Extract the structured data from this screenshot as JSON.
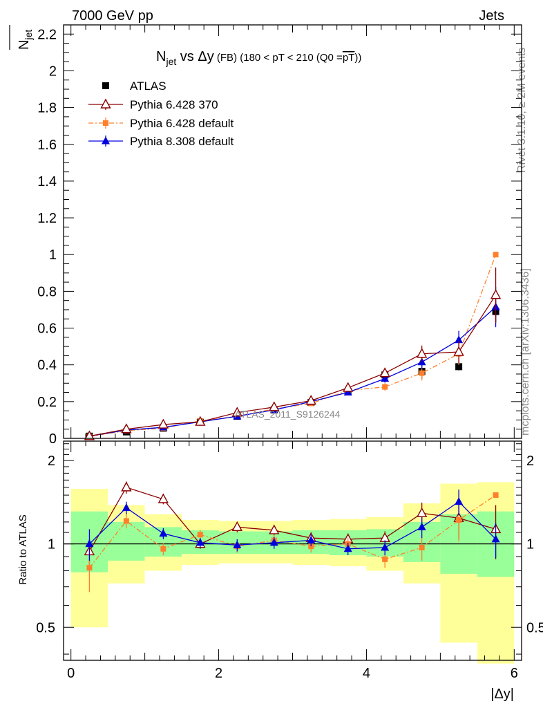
{
  "header": {
    "left": "7000 GeV pp",
    "right": "Jets"
  },
  "side_labels": {
    "rivet": "Rivet 3.1.10, ≥ 2M events",
    "mcplots": "mcplots.cern.ch [arXiv:1306.3436]"
  },
  "watermark": "ATLAS_2011_S9126244",
  "colors": {
    "atlas": "#000000",
    "p6_370": "#8b0000",
    "p6_default": "#ff7f2a",
    "p8": "#0000dd",
    "band_outer": "#ffff99",
    "band_inner": "#99ff99"
  },
  "chart_data": [
    {
      "type": "line",
      "title": {
        "main": "N",
        "sub": "jet",
        "vs": " vs ",
        "delta": "Δy",
        "fb": " (FB)",
        "cut": " (180 < pT < 210 (Q0 =",
        "q0": "pT",
        "close": "))"
      },
      "ylabel": {
        "main": "N",
        "sub": "jet"
      },
      "xlim": [
        -0.1,
        6.1
      ],
      "ylim": [
        0,
        2.25
      ],
      "yticks": [
        "0",
        "0.2",
        "0.4",
        "0.6",
        "0.8",
        "1",
        "1.2",
        "1.4",
        "1.6",
        "1.8",
        "2",
        "2.2"
      ],
      "ytick_values": [
        0,
        0.2,
        0.4,
        0.6,
        0.8,
        1.0,
        1.2,
        1.4,
        1.6,
        1.8,
        2.0,
        2.2
      ],
      "legend_position": "top-left",
      "x": [
        0.25,
        0.75,
        1.25,
        1.75,
        2.25,
        2.75,
        3.25,
        3.75,
        4.25,
        4.75,
        5.25,
        5.75
      ],
      "series": [
        {
          "name": "ATLAS",
          "key": "atlas",
          "marker": "square",
          "values": [
            0.012,
            0.035,
            0.055,
            0.088,
            0.12,
            0.155,
            0.195,
            0.255,
            0.345,
            0.365,
            0.39,
            0.69
          ],
          "errors": [
            0.004,
            0.005,
            0.006,
            0.008,
            0.01,
            0.012,
            0.014,
            0.018,
            0.03,
            0.04,
            0.02,
            0.06
          ]
        },
        {
          "name": "Pythia 6.428 370",
          "key": "p6_370",
          "marker": "open-triangle",
          "values": [
            0.012,
            0.05,
            0.075,
            0.09,
            0.14,
            0.17,
            0.205,
            0.275,
            0.355,
            0.46,
            0.47,
            0.78
          ],
          "errors": [
            0.002,
            0.004,
            0.005,
            0.005,
            0.006,
            0.008,
            0.01,
            0.014,
            0.025,
            0.045,
            0.06,
            0.15
          ]
        },
        {
          "name": "Pythia 6.428 default",
          "key": "p6_default",
          "marker": "filled-square",
          "values": [
            0.01,
            0.042,
            0.055,
            0.095,
            0.12,
            0.16,
            0.19,
            0.26,
            0.28,
            0.355,
            0.46,
            1.0
          ],
          "errors": [
            0.002,
            0.004,
            0.004,
            0.005,
            0.006,
            0.007,
            0.01,
            0.015,
            0.02,
            0.04,
            0.06,
            0.0
          ]
        },
        {
          "name": "Pythia 8.308 default",
          "key": "p8",
          "marker": "filled-triangle",
          "values": [
            0.012,
            0.045,
            0.06,
            0.09,
            0.12,
            0.155,
            0.2,
            0.25,
            0.325,
            0.415,
            0.535,
            0.715
          ],
          "errors": [
            0.002,
            0.004,
            0.004,
            0.005,
            0.006,
            0.008,
            0.01,
            0.013,
            0.022,
            0.035,
            0.05,
            0.11
          ]
        }
      ]
    },
    {
      "type": "line",
      "ylabel": "Ratio to ATLAS",
      "xlabel": "|Δy|",
      "xlim": [
        -0.1,
        6.1
      ],
      "ylim": [
        0.38,
        2.35
      ],
      "log_y": true,
      "xticks": [
        "0",
        "2",
        "4",
        "6"
      ],
      "xtick_values": [
        0,
        2,
        4,
        6
      ],
      "yticks": [
        "0.5",
        "1",
        "2"
      ],
      "ytick_values": [
        0.5,
        1,
        2
      ],
      "x": [
        0.25,
        0.75,
        1.25,
        1.75,
        2.25,
        2.75,
        3.25,
        3.75,
        4.25,
        4.75,
        5.25,
        5.75
      ],
      "bins": [
        [
          0,
          0.5
        ],
        [
          0.5,
          1
        ],
        [
          1,
          1.5
        ],
        [
          1.5,
          2
        ],
        [
          2,
          2.5
        ],
        [
          2.5,
          3
        ],
        [
          3,
          3.5
        ],
        [
          3.5,
          4
        ],
        [
          4,
          4.5
        ],
        [
          4.5,
          5
        ],
        [
          5,
          5.5
        ],
        [
          5.5,
          6
        ]
      ],
      "band_outer": [
        [
          0.5,
          1.58
        ],
        [
          0.72,
          1.38
        ],
        [
          0.8,
          1.28
        ],
        [
          0.84,
          1.22
        ],
        [
          0.85,
          1.21
        ],
        [
          0.85,
          1.21
        ],
        [
          0.84,
          1.22
        ],
        [
          0.83,
          1.23
        ],
        [
          0.8,
          1.25
        ],
        [
          0.72,
          1.4
        ],
        [
          0.44,
          1.65
        ],
        [
          0.37,
          1.67
        ]
      ],
      "band_inner": [
        [
          0.79,
          1.31
        ],
        [
          0.87,
          1.2
        ],
        [
          0.9,
          1.15
        ],
        [
          0.92,
          1.12
        ],
        [
          0.92,
          1.11
        ],
        [
          0.92,
          1.11
        ],
        [
          0.92,
          1.12
        ],
        [
          0.91,
          1.12
        ],
        [
          0.9,
          1.13
        ],
        [
          0.86,
          1.2
        ],
        [
          0.78,
          1.28
        ],
        [
          0.76,
          1.31
        ]
      ],
      "series": [
        {
          "key": "p6_370",
          "marker": "open-triangle",
          "values": [
            0.94,
            1.6,
            1.45,
            1.0,
            1.15,
            1.12,
            1.05,
            1.04,
            1.05,
            1.29,
            1.24,
            1.13
          ],
          "errors": [
            0.1,
            0.08,
            0.06,
            0.04,
            0.05,
            0.05,
            0.05,
            0.05,
            0.06,
            0.12,
            0.2,
            0.25
          ]
        },
        {
          "key": "p6_default",
          "marker": "filled-square",
          "values": [
            0.82,
            1.21,
            0.96,
            1.08,
            0.98,
            1.03,
            0.98,
            1.0,
            0.88,
            0.97,
            1.22,
            1.5
          ],
          "errors": [
            0.15,
            0.07,
            0.05,
            0.04,
            0.05,
            0.05,
            0.05,
            0.05,
            0.06,
            0.1,
            0.2,
            0.0
          ]
        },
        {
          "key": "p8",
          "marker": "filled-triangle",
          "values": [
            1.0,
            1.35,
            1.09,
            1.01,
            0.99,
            1.01,
            1.03,
            0.96,
            0.97,
            1.15,
            1.42,
            1.04
          ],
          "errors": [
            0.13,
            0.07,
            0.05,
            0.04,
            0.05,
            0.05,
            0.05,
            0.05,
            0.06,
            0.1,
            0.15,
            0.15
          ]
        }
      ]
    }
  ]
}
